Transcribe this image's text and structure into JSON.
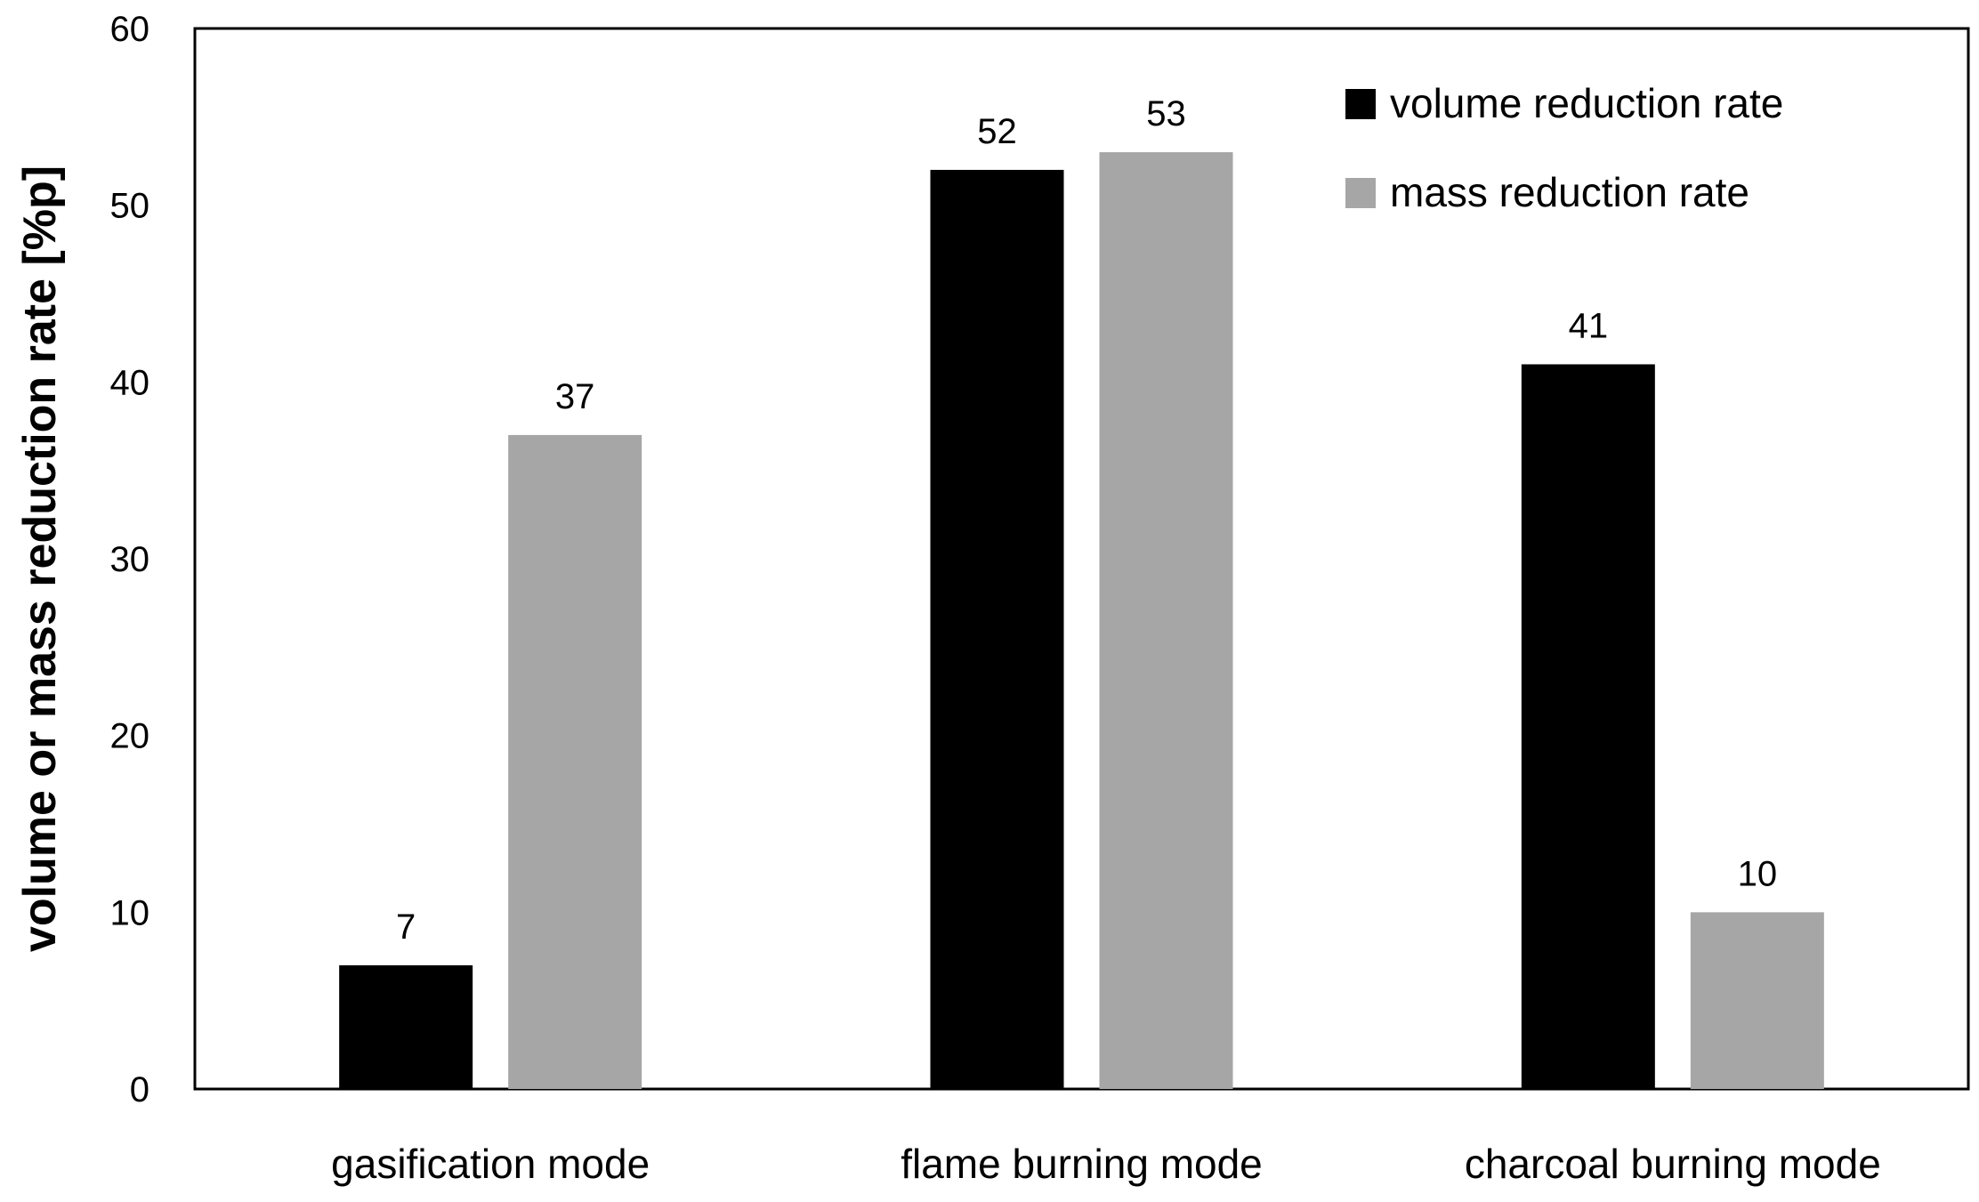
{
  "chart_data": {
    "type": "bar",
    "title": "",
    "xlabel": "",
    "ylabel": "volume or mass reduction rate  [%p]",
    "ylim": [
      0,
      60
    ],
    "yticks": [
      0,
      10,
      20,
      30,
      40,
      50,
      60
    ],
    "grid": false,
    "legend_position": "top-right",
    "categories": [
      "gasification mode",
      "flame burning mode",
      "charcoal burning mode"
    ],
    "series": [
      {
        "name": "volume reduction rate",
        "color": "#000000",
        "values": [
          7,
          52,
          41
        ]
      },
      {
        "name": "mass reduction rate",
        "color": "#a6a6a6",
        "values": [
          37,
          53,
          10
        ]
      }
    ]
  }
}
